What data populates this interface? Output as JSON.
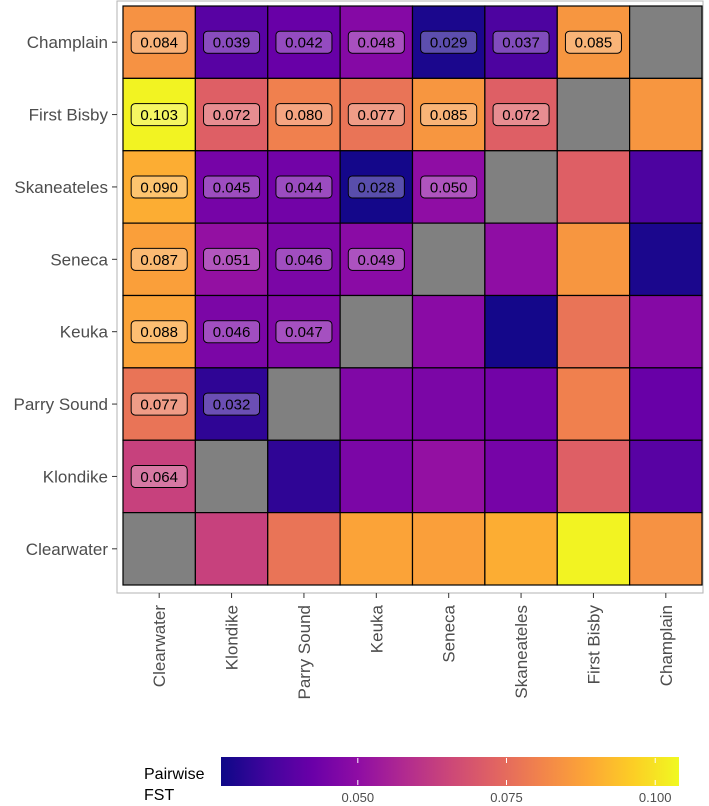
{
  "chart_data": {
    "type": "heatmap",
    "title": "",
    "xlabel": "",
    "ylabel": "",
    "x_categories": [
      "Clearwater",
      "Klondike",
      "Parry Sound",
      "Keuka",
      "Seneca",
      "Skaneateles",
      "First Bisby",
      "Champlain"
    ],
    "y_categories_top_to_bottom": [
      "Champlain",
      "First Bisby",
      "Skaneateles",
      "Seneca",
      "Keuka",
      "Parry Sound",
      "Klondike",
      "Clearwater"
    ],
    "populations": [
      "Clearwater",
      "Klondike",
      "Parry Sound",
      "Keuka",
      "Seneca",
      "Skaneateles",
      "First Bisby",
      "Champlain"
    ],
    "fst_matrix": [
      [
        null,
        0.064,
        0.077,
        0.088,
        0.087,
        0.09,
        0.103,
        0.084
      ],
      [
        0.064,
        null,
        0.032,
        0.046,
        0.051,
        0.045,
        0.072,
        0.039
      ],
      [
        0.077,
        0.032,
        null,
        0.047,
        0.046,
        0.044,
        0.08,
        0.042
      ],
      [
        0.088,
        0.046,
        0.047,
        null,
        0.049,
        0.028,
        0.077,
        0.048
      ],
      [
        0.087,
        0.051,
        0.046,
        0.049,
        null,
        0.05,
        0.085,
        0.029
      ],
      [
        0.09,
        0.045,
        0.044,
        0.028,
        0.05,
        null,
        0.072,
        0.037
      ],
      [
        0.103,
        0.072,
        0.08,
        0.077,
        0.085,
        0.072,
        null,
        0.085
      ],
      [
        0.084,
        0.039,
        0.042,
        0.048,
        0.029,
        0.037,
        0.085,
        null
      ]
    ],
    "label_triangle": "upper-left",
    "diagonal_color": "#808080",
    "colorscale": "plasma",
    "color_range": [
      0.027,
      0.104
    ],
    "legend": {
      "title_line1": "Pairwise",
      "title_line2": "FST",
      "ticks": [
        0.05,
        0.075,
        0.1
      ],
      "tick_labels": [
        "0.050",
        "0.075",
        "0.100"
      ],
      "position": "bottom"
    }
  }
}
